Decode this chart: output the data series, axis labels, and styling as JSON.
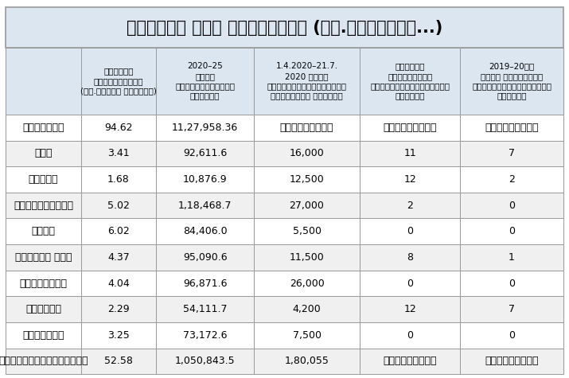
{
  "title": "కొన్ని రుణ గణాంకాలు (రూ.కోట్లలో...)",
  "col_headers": [
    "మొత్తం\nరుణబకాయిలు\n(రూ.లక్షల కోట్లు)",
    "2020–25\nమధ్య\nపరిఫక్వమయ్యే\nరుణాలు",
    "1.4.2020–21.7.\n2020 మధ్య\nవినియోగించుకున్న\nఎస్డీఎల్ రుణాలు",
    "ఆర్బీఐ\nసదుపాయాలు\nవినియోగించుకున్న\nమాసాలు",
    "2019–20లో\nఓవర్ డ్రాఫ్ట్\nవినియోగించుకున్న\nమాసాలు"
  ],
  "row_labels": [
    "కేంద్రం",
    "ఏపీ",
    "టీఎస్",
    "మహారాష్ట్ర",
    "యూపీ",
    "పశ్చిమ బంగ",
    "తమిళనాడు",
    "పంజాబ్",
    "గుజరాత్",
    "అన్నిరాష్ట్రాలు"
  ],
  "table_data": [
    [
      "94.62",
      "11,27,958.36",
      "వర్తించదు",
      "వర్తించదు",
      "వర్తించదు"
    ],
    [
      "3.41",
      "92,611.6",
      "16,000",
      "11",
      "7"
    ],
    [
      "1.68",
      "10,876.9",
      "12,500",
      "12",
      "2"
    ],
    [
      "5.02",
      "1,18,468.7",
      "27,000",
      "2",
      "0"
    ],
    [
      "6.02",
      "84,406.0",
      "5,500",
      "0",
      "0"
    ],
    [
      "4.37",
      "95,090.6",
      "11,500",
      "8",
      "1"
    ],
    [
      "4.04",
      "96,871.6",
      "26,000",
      "0",
      "0"
    ],
    [
      "2.29",
      "54,111.7",
      "4,200",
      "12",
      "7"
    ],
    [
      "3.25",
      "73,172.6",
      "7,500",
      "0",
      "0"
    ],
    [
      "52.58",
      "1,050,843.5",
      "1,80,055",
      "వర్తించదు",
      "వర్తించదు"
    ]
  ],
  "header_bg": "#dce6f1",
  "row_bg_odd": "#ffffff",
  "row_bg_even": "#f0f0f0",
  "title_bg": "#dce6f1",
  "border_color": "#999999",
  "text_color": "#000000",
  "title_fontsize": 15,
  "header_fontsize": 7.5,
  "cell_fontsize": 9,
  "row_label_fontsize": 9
}
